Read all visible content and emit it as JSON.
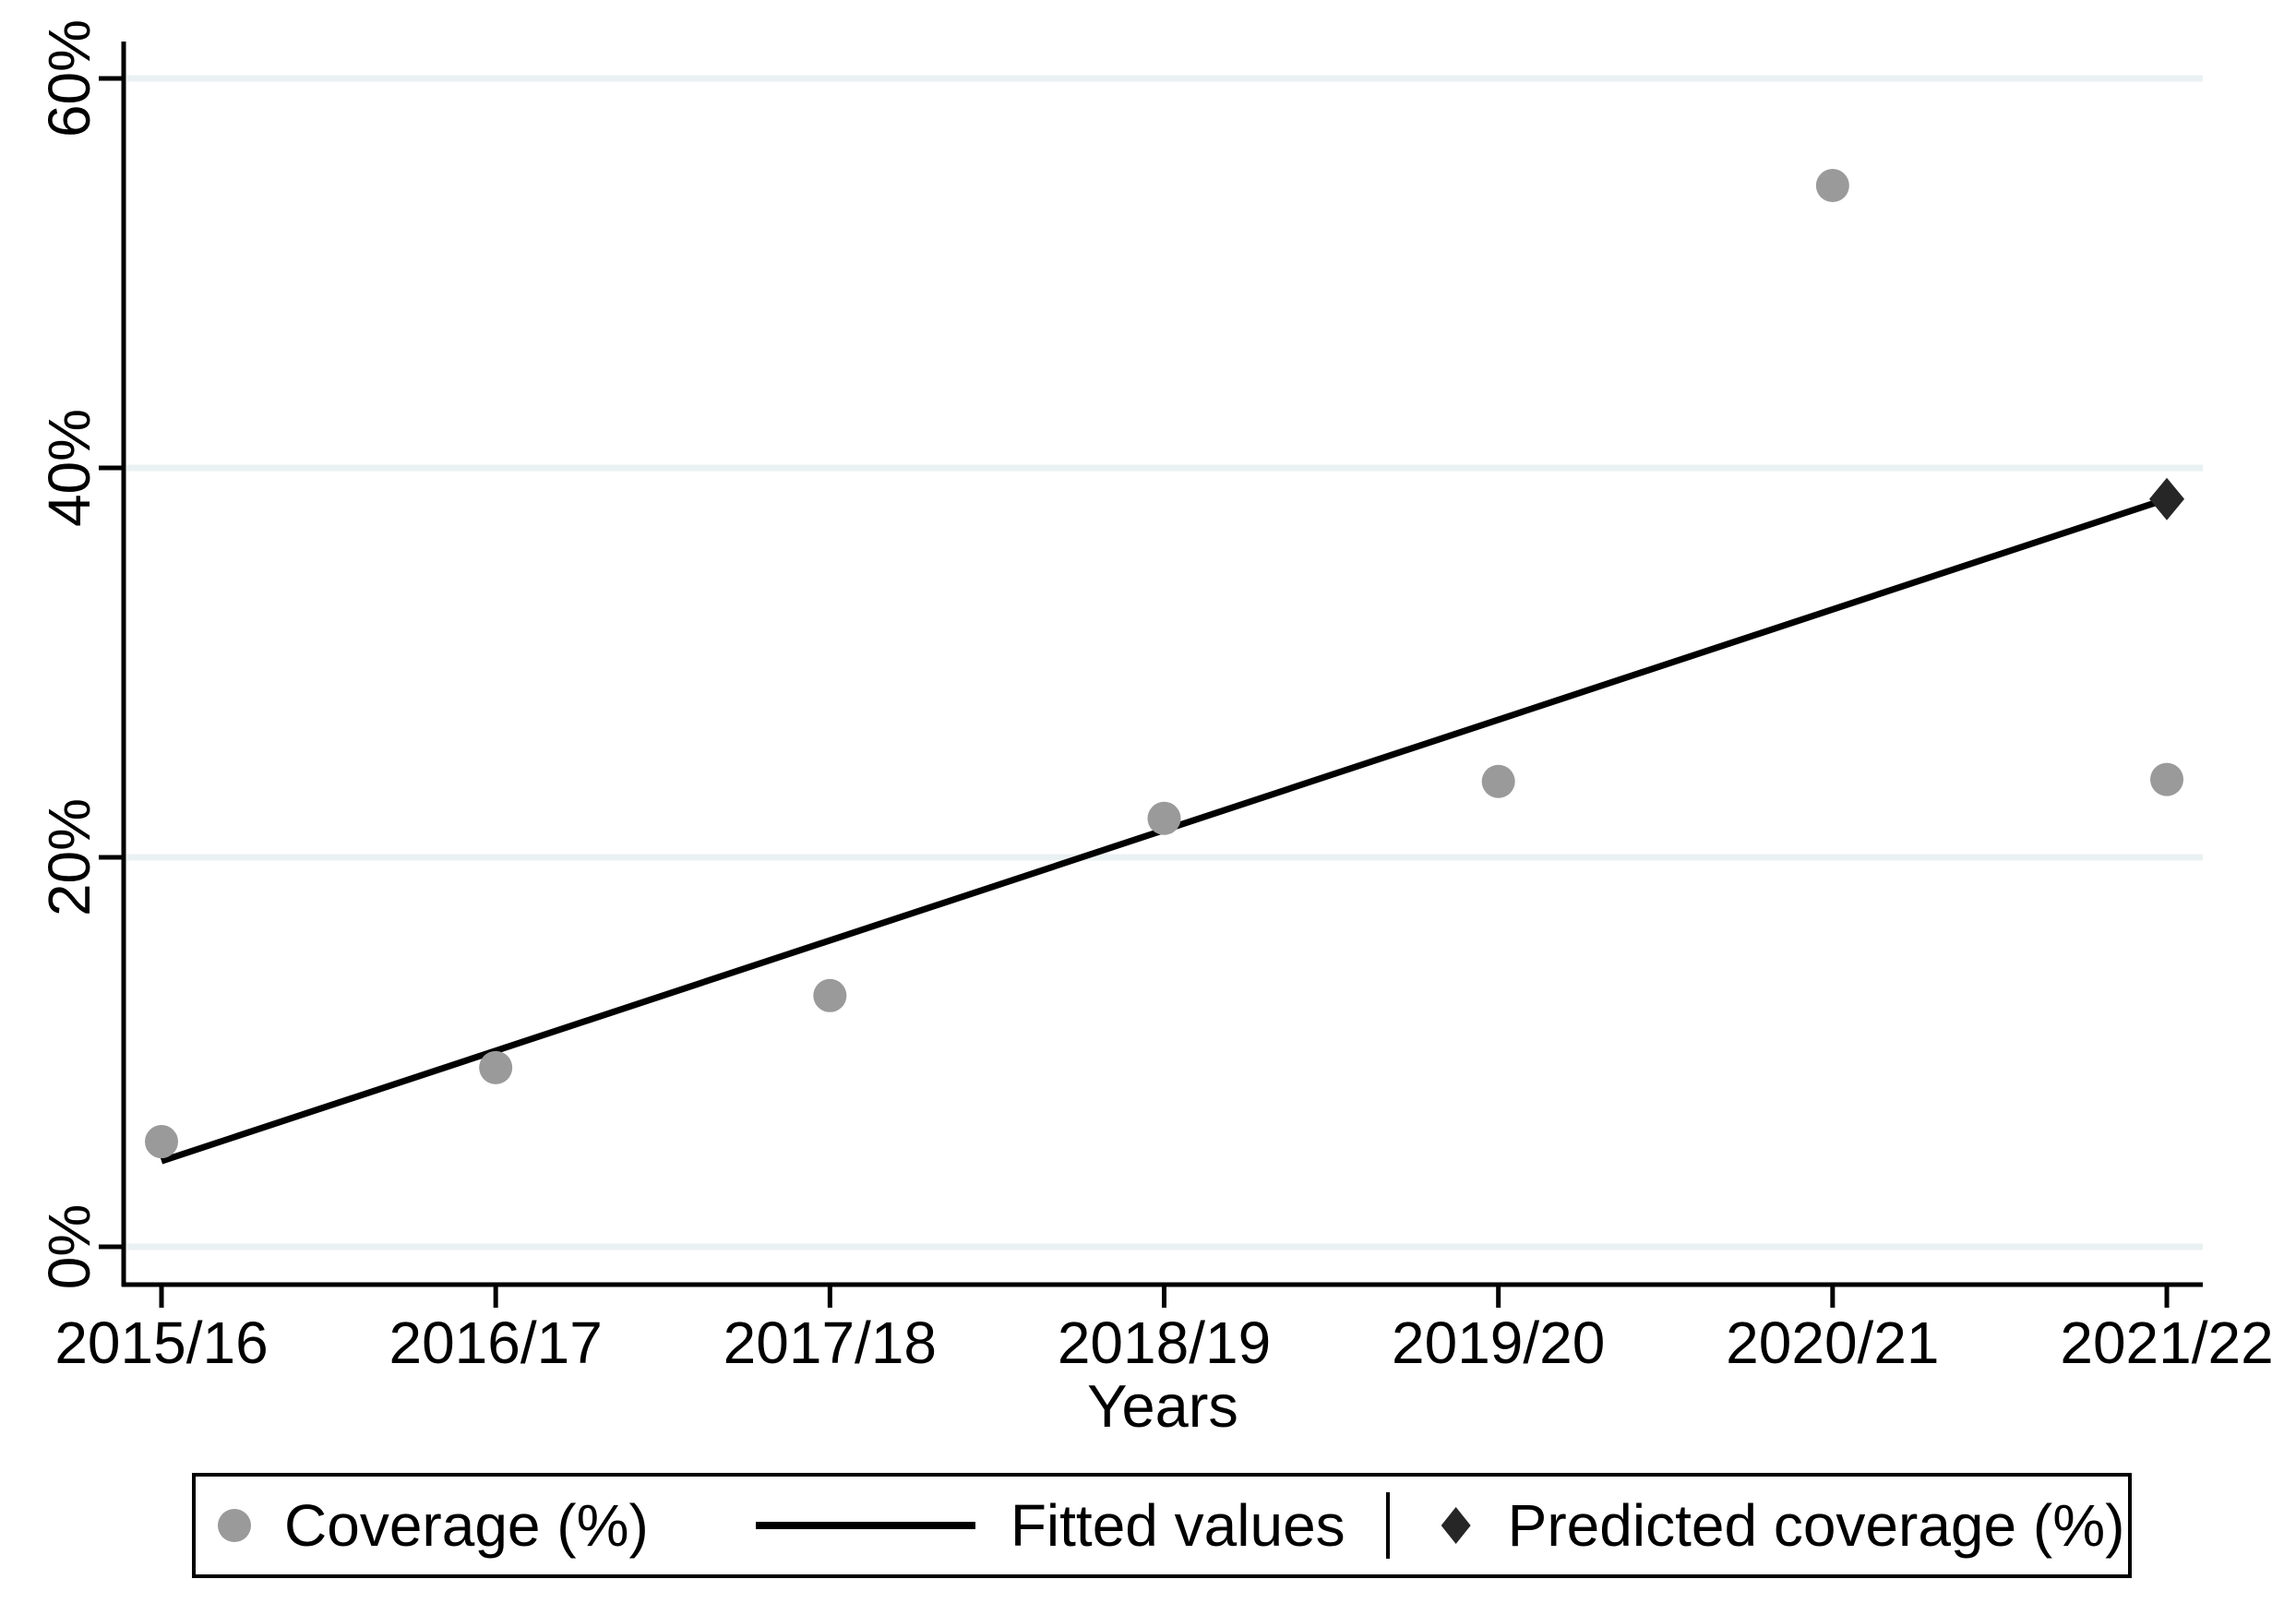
{
  "chart_data": {
    "type": "scatter",
    "title": "",
    "xlabel": "Years",
    "ylabel": "",
    "categories": [
      "2015/16",
      "2016/17",
      "2017/18",
      "2018/19",
      "2019/20",
      "2020/21",
      "2021/22"
    ],
    "yticks": {
      "values": [
        0,
        20,
        40,
        60
      ],
      "labels": [
        "0%",
        "20%",
        "40%",
        "60%"
      ]
    },
    "ylim": [
      -2,
      62
    ],
    "grid": true,
    "legend_position": "bottom",
    "series": [
      {
        "name": "Coverage (%)",
        "type": "scatter",
        "marker": "circle",
        "color": "#9a9a9a",
        "values": [
          5.4,
          9.2,
          12.9,
          22.0,
          23.9,
          54.5,
          24.0
        ]
      },
      {
        "name": "Fitted values",
        "type": "line",
        "color": "#000000",
        "x_index": [
          0,
          6
        ],
        "values": [
          4.4,
          38.4
        ]
      },
      {
        "name": "Predicted coverage (%)",
        "type": "scatter",
        "marker": "diamond",
        "color": "#262626",
        "points": [
          {
            "x_index": 6,
            "value": 38.4
          }
        ]
      }
    ]
  },
  "colors": {
    "background": "#ffffff",
    "grid": "#eaf1f2",
    "axis": "#000000",
    "text": "#000000"
  }
}
